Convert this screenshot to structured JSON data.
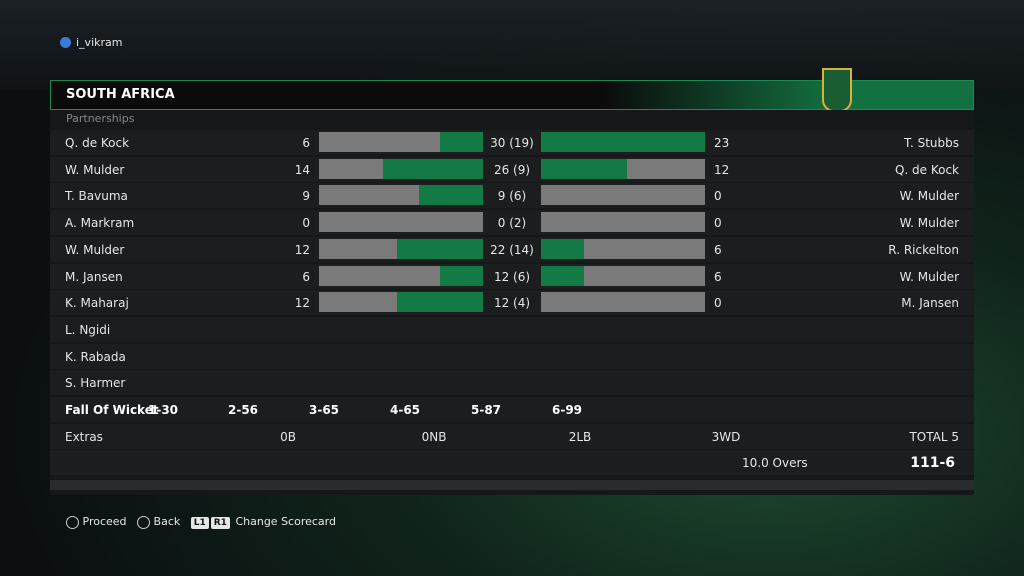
{
  "user": "i_vikram",
  "team": "SOUTH AFRICA",
  "section": "Partnerships",
  "partnerships": [
    {
      "batter1": "Q. de Kock",
      "runs1": 6,
      "total": "30 (19)",
      "runs2": 23,
      "batter2": "T. Stubbs"
    },
    {
      "batter1": "W. Mulder",
      "runs1": 14,
      "total": "26 (9)",
      "runs2": 12,
      "batter2": "Q. de Kock"
    },
    {
      "batter1": "T. Bavuma",
      "runs1": 9,
      "total": "9 (6)",
      "runs2": 0,
      "batter2": "W. Mulder"
    },
    {
      "batter1": "A. Markram",
      "runs1": 0,
      "total": "0 (2)",
      "runs2": 0,
      "batter2": "W. Mulder"
    },
    {
      "batter1": "W. Mulder",
      "runs1": 12,
      "total": "22 (14)",
      "runs2": 6,
      "batter2": "R. Rickelton"
    },
    {
      "batter1": "M. Jansen",
      "runs1": 6,
      "total": "12 (6)",
      "runs2": 6,
      "batter2": "W. Mulder"
    },
    {
      "batter1": "K. Maharaj",
      "runs1": 12,
      "total": "12 (4)",
      "runs2": 0,
      "batter2": "M. Jansen"
    }
  ],
  "did_not_bat": [
    "L. Ngidi",
    "K. Rabada",
    "S. Harmer"
  ],
  "fall_of_wickets": {
    "label": "Fall Of Wicket",
    "items": [
      "1-30",
      "2-56",
      "3-65",
      "4-65",
      "5-87",
      "6-99"
    ]
  },
  "extras": {
    "label": "Extras",
    "items": [
      "0B",
      "0NB",
      "2LB",
      "3WD"
    ],
    "total": "TOTAL 5"
  },
  "overs": "10.0 Overs",
  "score": "111-6",
  "footer": {
    "proceed": "Proceed",
    "back": "Back",
    "l1": "L1",
    "r1": "R1",
    "change": "Change Scorecard"
  }
}
